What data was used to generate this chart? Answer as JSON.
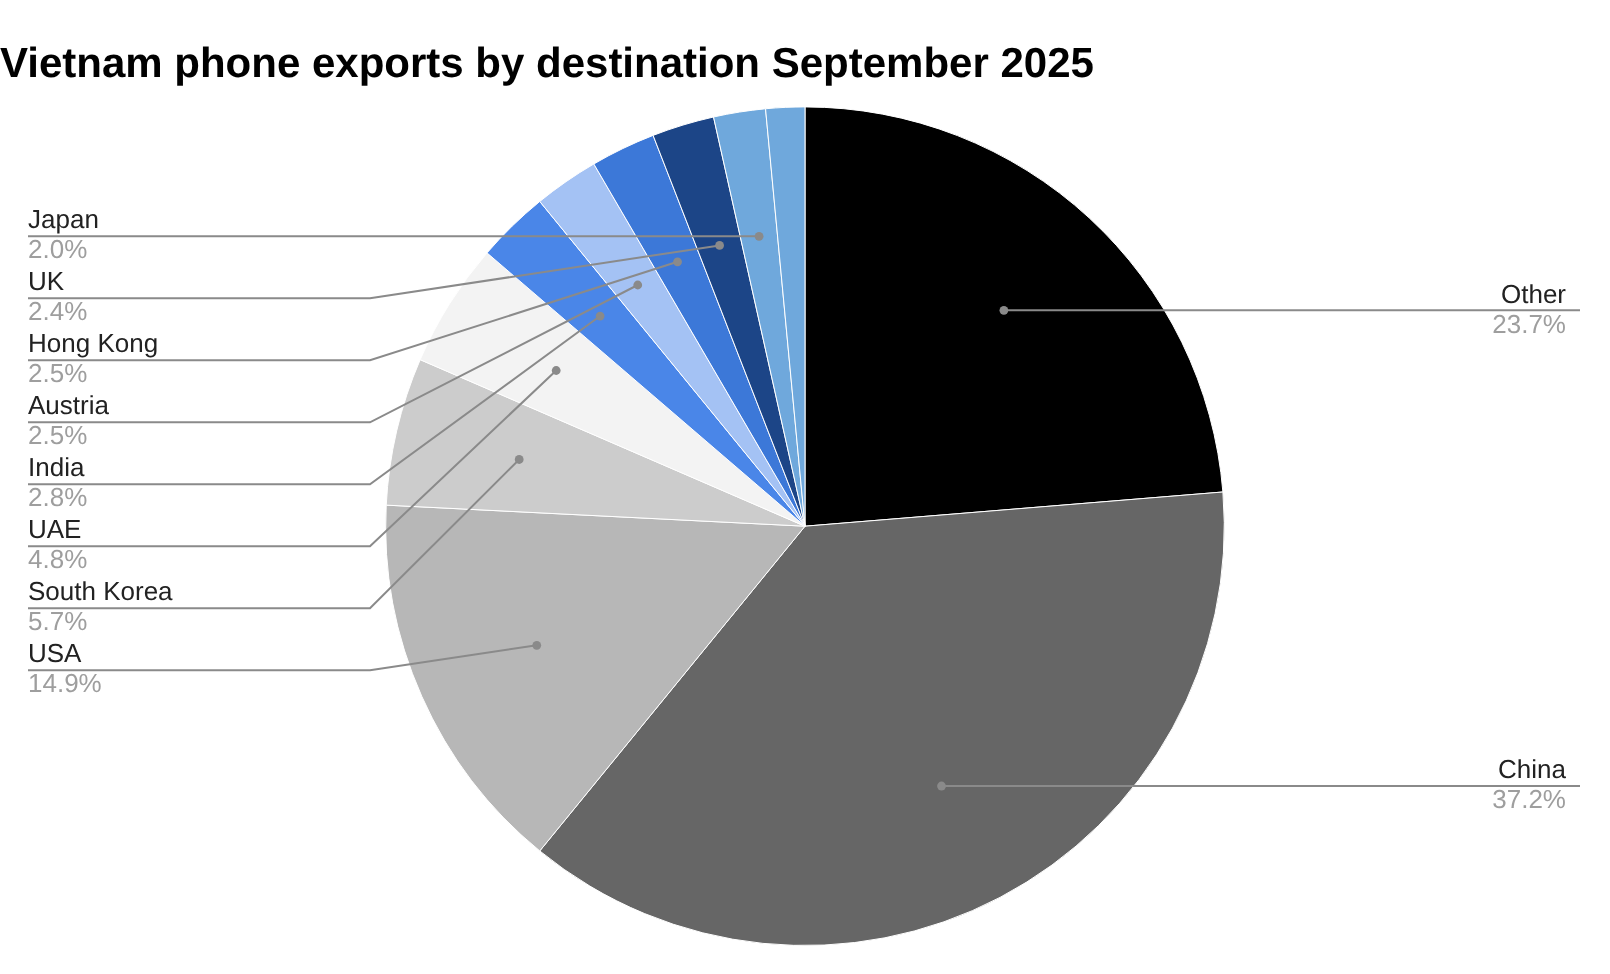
{
  "chart_data": {
    "type": "pie",
    "title": "Vietnam phone exports by destination September 2025",
    "categories": [
      "Other",
      "China",
      "USA",
      "South Korea",
      "UAE",
      "India",
      "Austria",
      "Hong Kong",
      "UK",
      "Japan",
      null
    ],
    "values": [
      23.7,
      37.2,
      14.9,
      5.7,
      4.8,
      2.8,
      2.5,
      2.5,
      2.4,
      2.0,
      1.5
    ],
    "value_labels": [
      "23.7%",
      "37.2%",
      "14.9%",
      "5.7%",
      "4.8%",
      "2.8%",
      "2.5%",
      "2.5%",
      "2.4%",
      "2.0%",
      null
    ],
    "colors": [
      "#000000",
      "#666666",
      "#b7b7b7",
      "#cccccc",
      "#f3f3f3",
      "#4a86e8",
      "#a4c2f4",
      "#3c78d8",
      "#1c4587",
      "#6fa8dc",
      "#6fa8dc"
    ],
    "legend": false
  }
}
